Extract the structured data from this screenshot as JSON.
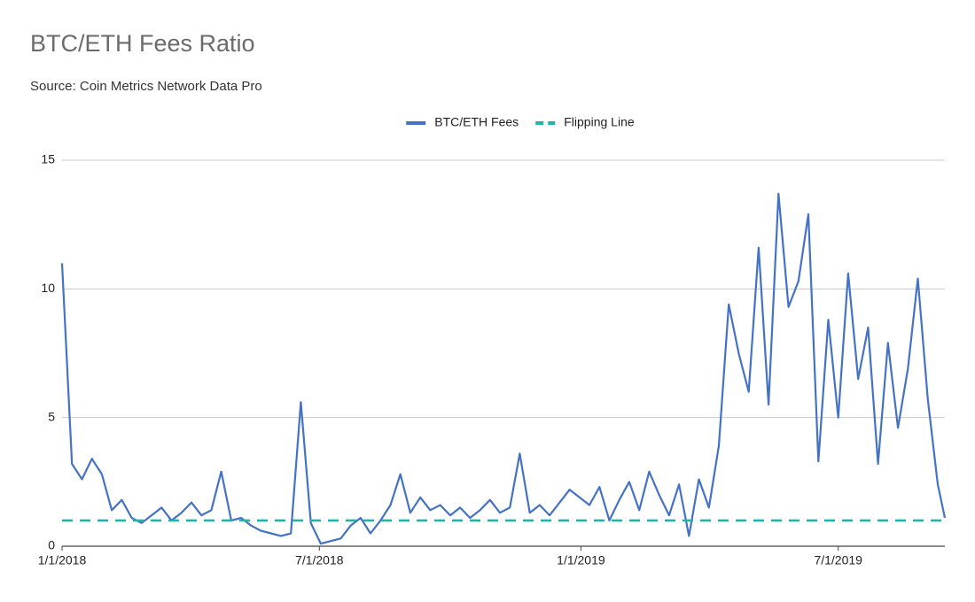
{
  "chart_data": {
    "type": "line",
    "title": "BTC/ETH Fees Ratio",
    "subtitle": "Source: Coin Metrics Network Data Pro",
    "x": [
      "1/1/2018",
      "1/8/2018",
      "1/15/2018",
      "1/22/2018",
      "1/29/2018",
      "2/5/2018",
      "2/12/2018",
      "2/19/2018",
      "2/26/2018",
      "3/5/2018",
      "3/12/2018",
      "3/19/2018",
      "3/26/2018",
      "4/2/2018",
      "4/9/2018",
      "4/16/2018",
      "4/23/2018",
      "4/30/2018",
      "5/7/2018",
      "5/14/2018",
      "5/21/2018",
      "5/28/2018",
      "6/4/2018",
      "6/11/2018",
      "6/18/2018",
      "6/25/2018",
      "7/2/2018",
      "7/9/2018",
      "7/16/2018",
      "7/23/2018",
      "7/30/2018",
      "8/6/2018",
      "8/13/2018",
      "8/20/2018",
      "8/27/2018",
      "9/3/2018",
      "9/10/2018",
      "9/17/2018",
      "9/24/2018",
      "10/1/2018",
      "10/8/2018",
      "10/15/2018",
      "10/22/2018",
      "10/29/2018",
      "11/5/2018",
      "11/12/2018",
      "11/19/2018",
      "11/26/2018",
      "12/3/2018",
      "12/10/2018",
      "12/17/2018",
      "12/24/2018",
      "12/31/2018",
      "1/7/2019",
      "1/14/2019",
      "1/21/2019",
      "1/28/2019",
      "2/4/2019",
      "2/11/2019",
      "2/18/2019",
      "2/25/2019",
      "3/4/2019",
      "3/11/2019",
      "3/18/2019",
      "3/25/2019",
      "4/1/2019",
      "4/8/2019",
      "4/15/2019",
      "4/22/2019",
      "4/29/2019",
      "5/6/2019",
      "5/13/2019",
      "5/20/2019",
      "5/27/2019",
      "6/3/2019",
      "6/10/2019",
      "6/17/2019",
      "6/24/2019",
      "7/1/2019",
      "7/8/2019",
      "7/15/2019",
      "7/22/2019",
      "7/29/2019",
      "8/5/2019",
      "8/12/2019",
      "8/19/2019",
      "8/26/2019",
      "9/2/2019",
      "9/9/2019",
      "9/14/2019"
    ],
    "series": [
      {
        "name": "BTC/ETH Fees",
        "color": "#4472c4",
        "dash": false,
        "values": [
          11.0,
          3.2,
          2.6,
          3.4,
          2.8,
          1.4,
          1.8,
          1.1,
          0.9,
          1.2,
          1.5,
          1.0,
          1.3,
          1.7,
          1.2,
          1.4,
          2.9,
          1.0,
          1.1,
          0.8,
          0.6,
          0.5,
          0.4,
          0.5,
          5.6,
          0.9,
          0.1,
          0.2,
          0.3,
          0.8,
          1.1,
          0.5,
          1.0,
          1.6,
          2.8,
          1.3,
          1.9,
          1.4,
          1.6,
          1.2,
          1.5,
          1.1,
          1.4,
          1.8,
          1.3,
          1.5,
          3.6,
          1.3,
          1.6,
          1.2,
          1.7,
          2.2,
          1.9,
          1.6,
          2.3,
          1.0,
          1.8,
          2.5,
          1.4,
          2.9,
          2.0,
          1.2,
          2.4,
          0.4,
          2.6,
          1.5,
          3.9,
          9.4,
          7.5,
          6.0,
          11.6,
          5.5,
          13.7,
          9.3,
          10.3,
          12.9,
          3.3,
          8.8,
          5.0,
          10.6,
          6.5,
          8.5,
          3.2,
          7.9,
          4.6,
          6.9,
          10.4,
          5.7,
          2.4,
          1.1
        ]
      },
      {
        "name": "Flipping Line",
        "color": "#1fb5a8",
        "dash": true,
        "values": [
          1,
          1,
          1,
          1,
          1,
          1,
          1,
          1,
          1,
          1,
          1,
          1,
          1,
          1,
          1,
          1,
          1,
          1,
          1,
          1,
          1,
          1,
          1,
          1,
          1,
          1,
          1,
          1,
          1,
          1,
          1,
          1,
          1,
          1,
          1,
          1,
          1,
          1,
          1,
          1,
          1,
          1,
          1,
          1,
          1,
          1,
          1,
          1,
          1,
          1,
          1,
          1,
          1,
          1,
          1,
          1,
          1,
          1,
          1,
          1,
          1,
          1,
          1,
          1,
          1,
          1,
          1,
          1,
          1,
          1,
          1,
          1,
          1,
          1,
          1,
          1,
          1,
          1,
          1,
          1,
          1,
          1,
          1,
          1,
          1,
          1,
          1,
          1,
          1,
          1
        ]
      }
    ],
    "xlim": [
      "1/1/2018",
      "9/14/2019"
    ],
    "xticks": [
      "1/1/2018",
      "7/1/2018",
      "1/1/2019",
      "7/1/2019"
    ],
    "ylim": [
      0,
      15
    ],
    "yticks": [
      0,
      5,
      10,
      15
    ],
    "grid": true,
    "legend": "top"
  }
}
